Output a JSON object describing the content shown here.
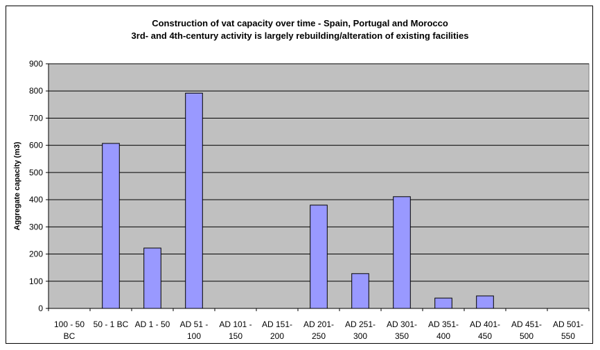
{
  "chart_data": {
    "type": "bar",
    "title": "Construction of vat capacity over time - Spain, Portugal and Morocco",
    "subtitle": "3rd- and 4th-century activity is largely rebuilding/alteration of existing facilities",
    "xlabel": "",
    "ylabel": "Aggregate capacity (m3)",
    "ylim": [
      0,
      900
    ],
    "yticks": [
      "0",
      "100",
      "200",
      "300",
      "400",
      "500",
      "600",
      "700",
      "800",
      "900"
    ],
    "categories": [
      [
        "100 - 50",
        "BC"
      ],
      [
        "50 - 1 BC",
        ""
      ],
      [
        "AD 1 - 50",
        ""
      ],
      [
        "AD 51 -",
        "100"
      ],
      [
        "AD 101 -",
        "150"
      ],
      [
        "AD 151-",
        "200"
      ],
      [
        "AD 201-",
        "250"
      ],
      [
        "AD 251-",
        "300"
      ],
      [
        "AD 301-",
        "350"
      ],
      [
        "AD 351-",
        "400"
      ],
      [
        "AD 401-",
        "450"
      ],
      [
        "AD 451-",
        "500"
      ],
      [
        "AD 501-",
        "550"
      ]
    ],
    "values": [
      0,
      607,
      222,
      792,
      0,
      0,
      380,
      128,
      411,
      38,
      46,
      0,
      0
    ],
    "grid": true,
    "legend": "none",
    "colors": {
      "bar": "#9999ff",
      "plot_background": "#c0c0c0",
      "bar_edge": "#000000"
    }
  }
}
